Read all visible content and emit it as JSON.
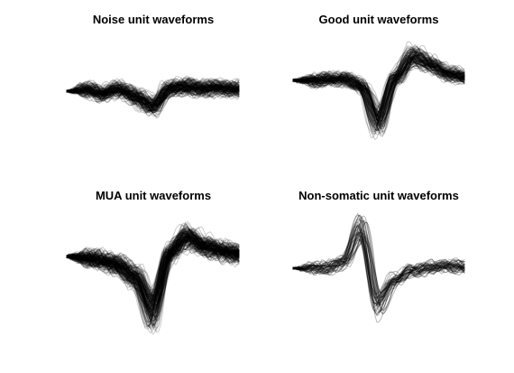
{
  "figure": {
    "background": "#ffffff",
    "trace_color": "#000000"
  },
  "chart_data": [
    {
      "type": "line",
      "title": "Noise unit waveforms",
      "xlabel": "",
      "ylabel": "",
      "axes_visible": false,
      "grid": false,
      "x": [
        0,
        10,
        20,
        30,
        40,
        50,
        60,
        70,
        80,
        90,
        100
      ],
      "num_traces": 140,
      "trace_opacity": 0.22,
      "series": [
        {
          "values": [
            0.0,
            0.03,
            -0.05,
            0.05,
            -0.12,
            -0.3,
            0.05,
            0.1,
            0.05,
            0.06,
            0.04
          ]
        }
      ]
    },
    {
      "type": "line",
      "title": "Good unit waveforms",
      "xlabel": "",
      "ylabel": "",
      "axes_visible": false,
      "grid": false,
      "x": [
        0,
        10,
        20,
        30,
        40,
        50,
        60,
        70,
        80,
        90,
        100
      ],
      "num_traces": 120,
      "trace_opacity": 0.22,
      "series": [
        {
          "values": [
            0.0,
            0.0,
            0.02,
            0.02,
            -0.1,
            -0.65,
            0.05,
            0.38,
            0.26,
            0.12,
            0.05
          ]
        }
      ]
    },
    {
      "type": "line",
      "title": "MUA unit waveforms",
      "xlabel": "",
      "ylabel": "",
      "axes_visible": false,
      "grid": false,
      "x": [
        0,
        10,
        20,
        30,
        40,
        50,
        60,
        70,
        80,
        90,
        100
      ],
      "num_traces": 180,
      "trace_opacity": 0.2,
      "series": [
        {
          "values": [
            0.0,
            -0.02,
            -0.05,
            -0.12,
            -0.3,
            -0.75,
            0.05,
            0.28,
            0.15,
            0.08,
            0.03
          ]
        }
      ]
    },
    {
      "type": "line",
      "title": "Non-somatic unit waveforms",
      "xlabel": "",
      "ylabel": "",
      "axes_visible": false,
      "grid": false,
      "x": [
        0,
        10,
        20,
        30,
        40,
        50,
        60,
        70,
        80,
        90,
        100
      ],
      "num_traces": 45,
      "trace_opacity": 0.28,
      "series": [
        {
          "values": [
            0.0,
            0.0,
            0.0,
            0.12,
            0.75,
            -0.65,
            -0.22,
            -0.06,
            0.02,
            0.05,
            0.02
          ]
        }
      ]
    }
  ]
}
